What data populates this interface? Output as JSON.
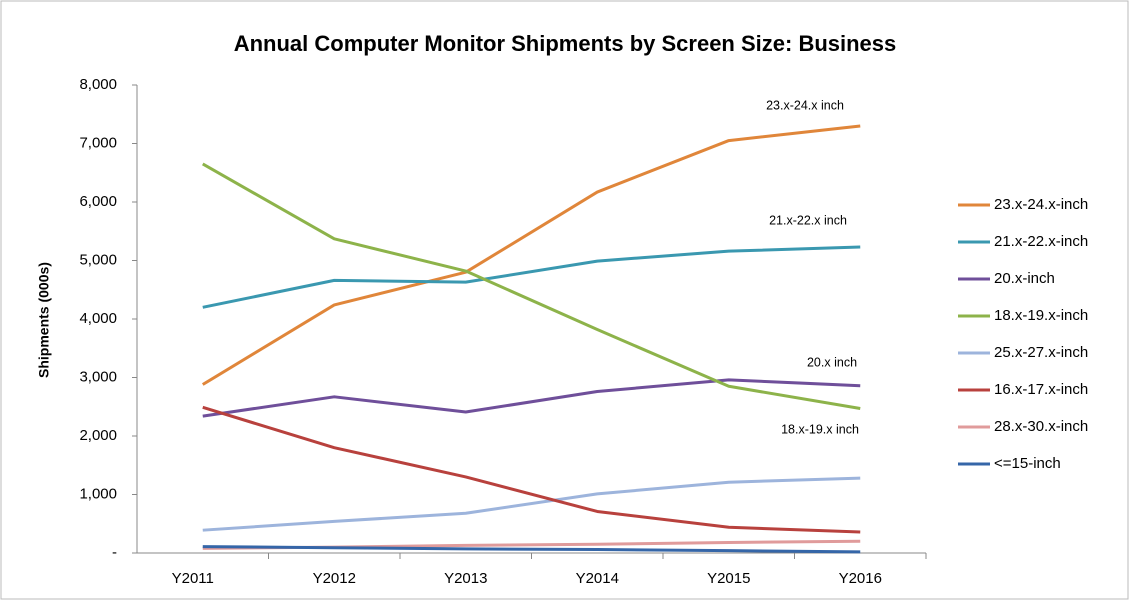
{
  "chart_data": {
    "type": "line",
    "title": "Annual Computer Monitor Shipments by Screen Size: Business",
    "y_label": "Shipments (000s)",
    "categories": [
      "Y2011",
      "Y2012",
      "Y2013",
      "Y2014",
      "Y2015",
      "Y2016"
    ],
    "series": [
      {
        "name": "23.x-24.x-inch",
        "color": "#e0863a",
        "values": [
          2880,
          4240,
          4800,
          6170,
          7050,
          7300
        ]
      },
      {
        "name": "21.x-22.x-inch",
        "color": "#3a98b0",
        "values": [
          4200,
          4660,
          4630,
          4990,
          5160,
          5230
        ]
      },
      {
        "name": "20.x-inch",
        "color": "#6f4f9a",
        "values": [
          2340,
          2670,
          2410,
          2760,
          2960,
          2860
        ]
      },
      {
        "name": "18.x-19.x-inch",
        "color": "#8db34a",
        "values": [
          6650,
          5370,
          4820,
          3820,
          2850,
          2470
        ]
      },
      {
        "name": "25.x-27.x-inch",
        "color": "#9db4dc",
        "values": [
          390,
          540,
          680,
          1010,
          1210,
          1280
        ]
      },
      {
        "name": "16.x-17.x-inch",
        "color": "#b8413d",
        "values": [
          2490,
          1800,
          1300,
          710,
          440,
          360
        ]
      },
      {
        "name": "28.x-30.x-inch",
        "color": "#e09b9b",
        "values": [
          80,
          100,
          130,
          150,
          180,
          200
        ]
      },
      {
        "name": "<=15-inch",
        "color": "#3566a8",
        "values": [
          110,
          90,
          70,
          60,
          40,
          20
        ]
      }
    ],
    "annotations": [
      "23.x-24.x inch",
      "21.x-22.x inch",
      "20.x inch",
      "18.x-19.x inch"
    ],
    "ylim": [
      0,
      8000
    ],
    "yticks": [
      {
        "value": 0,
        "label": "-"
      },
      {
        "value": 1000,
        "label": "1,000"
      },
      {
        "value": 2000,
        "label": "2,000"
      },
      {
        "value": 3000,
        "label": "3,000"
      },
      {
        "value": 4000,
        "label": "4,000"
      },
      {
        "value": 5000,
        "label": "5,000"
      },
      {
        "value": 6000,
        "label": "6,000"
      },
      {
        "value": 7000,
        "label": "7,000"
      },
      {
        "value": 8000,
        "label": "8,000"
      }
    ],
    "grid": false,
    "legend": "right"
  }
}
